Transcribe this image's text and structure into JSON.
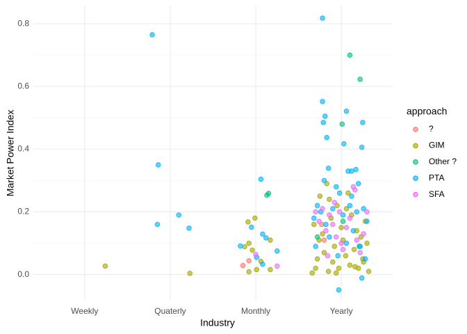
{
  "chart_data": {
    "type": "scatter",
    "x_label": "Industry",
    "y_label": "Market Power Index",
    "legend_title": "approach",
    "legend_position": "right",
    "grid": true,
    "xlim": [
      0.4,
      4.6
    ],
    "xticks": [
      {
        "value": 1,
        "label": "Weekly"
      },
      {
        "value": 2,
        "label": "Quaterly"
      },
      {
        "value": 3,
        "label": "Monthly"
      },
      {
        "value": 4,
        "label": "Yearly"
      }
    ],
    "ylim": [
      -0.083,
      0.858
    ],
    "yticks": [
      {
        "value": 0,
        "label": "0.0"
      },
      {
        "value": 0.2,
        "label": "0.2"
      },
      {
        "value": 0.4,
        "label": "0.4"
      },
      {
        "value": 0.6,
        "label": "0.6"
      },
      {
        "value": 0.8,
        "label": "0.8"
      }
    ],
    "series": [
      {
        "name": "?",
        "color": "#F8766D",
        "x": [
          2.85,
          2.92,
          3.77,
          3.8
        ],
        "values": [
          0.029,
          0.044,
          0.16,
          0.11
        ]
      },
      {
        "name": "GIM",
        "color": "#A3A500",
        "x": [
          1.24,
          2.23,
          2.91,
          2.99,
          2.87,
          2.92,
          2.96,
          2.92,
          3.01,
          3.06,
          3.17,
          3.17,
          3.66,
          3.7,
          3.72,
          3.75,
          3.78,
          3.8,
          3.83,
          3.85,
          3.88,
          3.9,
          3.92,
          3.95,
          3.97,
          4.0,
          4.02,
          4.05,
          4.08,
          4.1,
          4.12,
          4.15,
          4.18,
          4.2,
          4.23,
          4.25,
          4.28,
          4.3,
          4.32,
          3.68,
          3.86,
          4.06,
          4.16,
          4.26,
          3.74,
          3.94
        ],
        "values": [
          0.027,
          0.004,
          0.168,
          0.18,
          0.089,
          0.1,
          0.078,
          0.009,
          0.016,
          0.042,
          0.11,
          0.016,
          0.005,
          0.02,
          0.05,
          0.25,
          0.13,
          0.07,
          0.29,
          0.01,
          0.18,
          0.04,
          0.09,
          0.22,
          0.02,
          0.15,
          0.11,
          0.06,
          0.26,
          0.03,
          0.19,
          0.08,
          0.14,
          0.02,
          0.12,
          0.05,
          0.17,
          0.1,
          0.01,
          0.16,
          0.24,
          0.21,
          0.025,
          0.04,
          0.11,
          0.005
        ]
      },
      {
        "name": "Other ?",
        "color": "#00BF7D",
        "x": [
          3.13,
          3.15,
          4.1,
          4.22,
          4.01,
          3.72,
          4.02,
          4.21
        ],
        "values": [
          0.253,
          0.259,
          0.7,
          0.623,
          0.48,
          0.12,
          0.17,
          0.09
        ]
      },
      {
        "name": "PTA",
        "color": "#00B0F6",
        "x": [
          1.79,
          1.86,
          1.85,
          2.1,
          2.22,
          3.06,
          2.82,
          2.95,
          3.08,
          3.12,
          3.25,
          3.01,
          3.08,
          3.78,
          3.78,
          3.81,
          3.79,
          3.83,
          4.06,
          4.03,
          4.24,
          4.25,
          4.17,
          4.12,
          3.85,
          3.97,
          4.24,
          3.68,
          3.72,
          3.76,
          3.82,
          3.86,
          3.9,
          3.94,
          3.98,
          4.02,
          4.06,
          4.1,
          4.14,
          4.18,
          4.22,
          4.26,
          4.3,
          4.28,
          4.2,
          3.8,
          4.08,
          3.96,
          4.12,
          3.7
        ],
        "values": [
          0.765,
          0.35,
          0.16,
          0.19,
          0.148,
          0.304,
          0.091,
          0.151,
          0.129,
          0.117,
          0.075,
          0.055,
          0.033,
          0.818,
          0.552,
          0.505,
          0.485,
          0.437,
          0.521,
          0.417,
          0.406,
          0.485,
          0.335,
          0.33,
          0.339,
          -0.049,
          -0.011,
          0.18,
          0.22,
          0.2,
          0.16,
          0.12,
          0.21,
          0.28,
          0.26,
          0.19,
          0.1,
          0.22,
          0.14,
          0.2,
          0.09,
          0.21,
          0.17,
          0.05,
          0.29,
          0.3,
          0.33,
          0.06,
          0.25,
          0.09
        ]
      },
      {
        "name": "SFA",
        "color": "#E76BF3",
        "x": [
          3.0,
          3.25,
          3.7,
          3.74,
          3.78,
          3.82,
          3.86,
          3.9,
          3.94,
          3.98,
          4.02,
          4.06,
          4.1,
          4.14,
          4.18,
          4.22,
          4.26,
          4.3,
          3.84,
          4.0,
          4.16,
          3.92
        ],
        "values": [
          0.064,
          0.027,
          0.2,
          0.17,
          0.21,
          0.14,
          0.19,
          0.16,
          0.12,
          0.2,
          0.08,
          0.15,
          0.18,
          0.28,
          0.11,
          0.07,
          0.13,
          0.2,
          0.06,
          0.1,
          0.27,
          0.23
        ]
      }
    ]
  }
}
